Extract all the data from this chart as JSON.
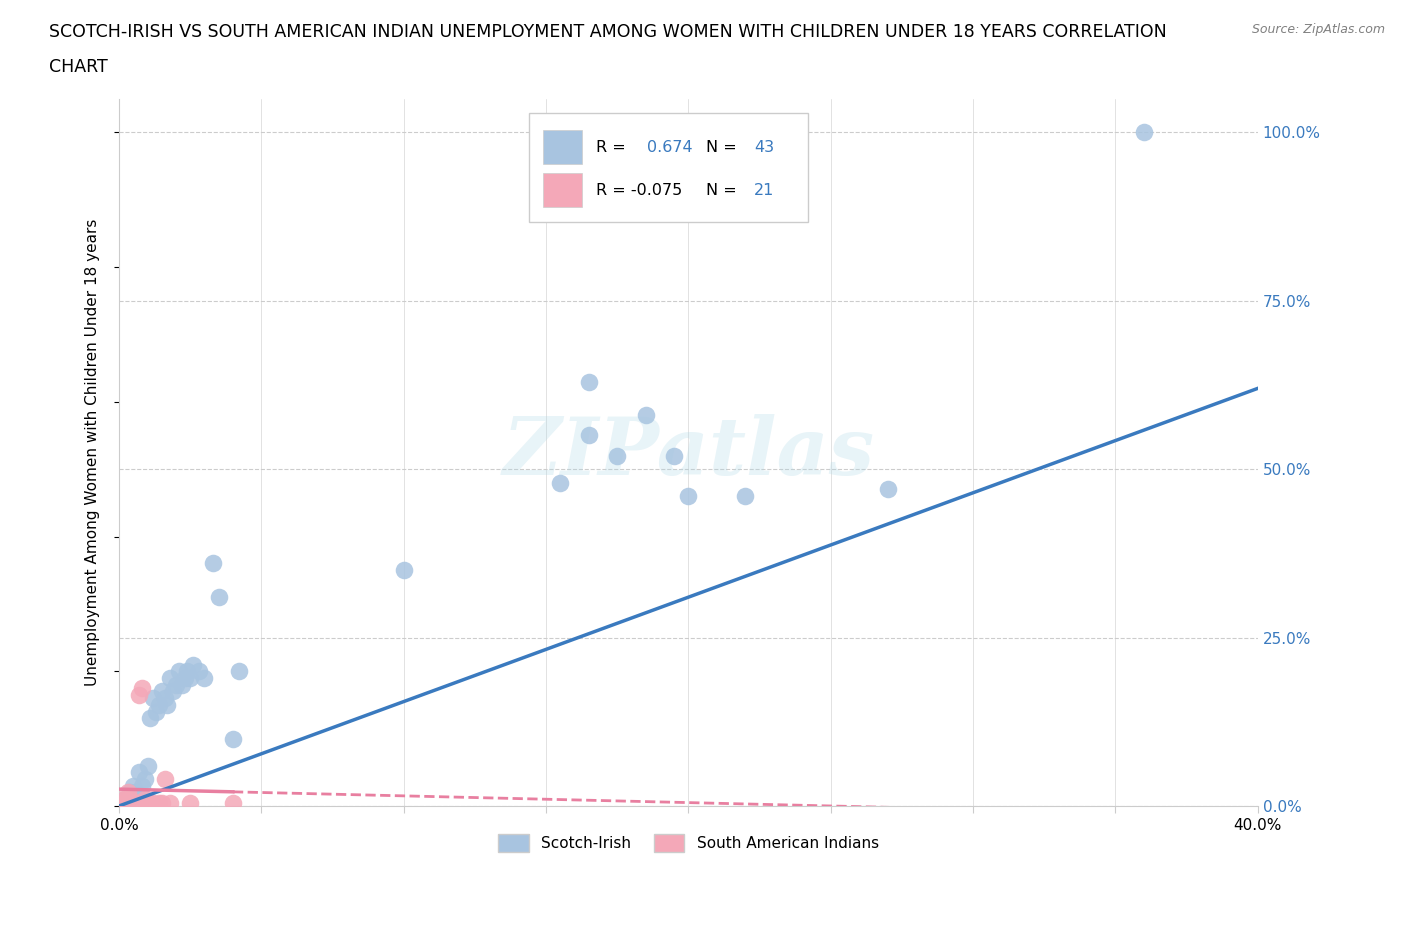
{
  "title_line1": "SCOTCH-IRISH VS SOUTH AMERICAN INDIAN UNEMPLOYMENT AMONG WOMEN WITH CHILDREN UNDER 18 YEARS CORRELATION",
  "title_line2": "CHART",
  "source": "Source: ZipAtlas.com",
  "ylabel": "Unemployment Among Women with Children Under 18 years",
  "xlim": [
    0,
    0.4
  ],
  "ylim": [
    0,
    1.05
  ],
  "watermark": "ZIPatlas",
  "blue_color": "#a8c4e0",
  "pink_color": "#f4a8b8",
  "blue_line_color": "#3a7abf",
  "pink_line_color": "#e87fa0",
  "blue_scatter": [
    [
      0.001,
      0.005
    ],
    [
      0.002,
      0.01
    ],
    [
      0.003,
      0.01
    ],
    [
      0.004,
      0.02
    ],
    [
      0.005,
      0.03
    ],
    [
      0.006,
      0.02
    ],
    [
      0.007,
      0.05
    ],
    [
      0.008,
      0.03
    ],
    [
      0.009,
      0.04
    ],
    [
      0.01,
      0.06
    ],
    [
      0.011,
      0.13
    ],
    [
      0.012,
      0.16
    ],
    [
      0.013,
      0.14
    ],
    [
      0.014,
      0.15
    ],
    [
      0.015,
      0.17
    ],
    [
      0.016,
      0.16
    ],
    [
      0.017,
      0.15
    ],
    [
      0.018,
      0.19
    ],
    [
      0.019,
      0.17
    ],
    [
      0.02,
      0.18
    ],
    [
      0.021,
      0.2
    ],
    [
      0.022,
      0.18
    ],
    [
      0.023,
      0.19
    ],
    [
      0.024,
      0.2
    ],
    [
      0.025,
      0.19
    ],
    [
      0.026,
      0.21
    ],
    [
      0.028,
      0.2
    ],
    [
      0.03,
      0.19
    ],
    [
      0.033,
      0.36
    ],
    [
      0.035,
      0.31
    ],
    [
      0.04,
      0.1
    ],
    [
      0.042,
      0.2
    ],
    [
      0.1,
      0.35
    ],
    [
      0.155,
      0.48
    ],
    [
      0.165,
      0.55
    ],
    [
      0.175,
      0.52
    ],
    [
      0.185,
      0.58
    ],
    [
      0.195,
      0.52
    ],
    [
      0.2,
      0.46
    ],
    [
      0.165,
      0.63
    ],
    [
      0.22,
      0.46
    ],
    [
      0.27,
      0.47
    ],
    [
      0.36,
      1.0
    ]
  ],
  "pink_scatter": [
    [
      0.001,
      0.005
    ],
    [
      0.002,
      0.01
    ],
    [
      0.002,
      0.005
    ],
    [
      0.003,
      0.005
    ],
    [
      0.003,
      0.02
    ],
    [
      0.004,
      0.01
    ],
    [
      0.005,
      0.005
    ],
    [
      0.006,
      0.005
    ],
    [
      0.007,
      0.005
    ],
    [
      0.007,
      0.165
    ],
    [
      0.008,
      0.175
    ],
    [
      0.009,
      0.01
    ],
    [
      0.01,
      0.005
    ],
    [
      0.011,
      0.005
    ],
    [
      0.012,
      0.005
    ],
    [
      0.014,
      0.005
    ],
    [
      0.015,
      0.005
    ],
    [
      0.016,
      0.04
    ],
    [
      0.018,
      0.005
    ],
    [
      0.025,
      0.005
    ],
    [
      0.04,
      0.005
    ]
  ],
  "legend_blue_label": "Scotch-Irish",
  "legend_pink_label": "South American Indians",
  "ytick_positions": [
    0.0,
    0.25,
    0.5,
    0.75,
    1.0
  ],
  "ytick_labels_right": [
    "0.0%",
    "25.0%",
    "50.0%",
    "75.0%",
    "100.0%"
  ],
  "xtick_positions": [
    0.0,
    0.05,
    0.1,
    0.15,
    0.2,
    0.25,
    0.3,
    0.35,
    0.4
  ],
  "xtick_labels": [
    "0.0%",
    "",
    "",
    "",
    "",
    "",
    "",
    "",
    "40.0%"
  ]
}
